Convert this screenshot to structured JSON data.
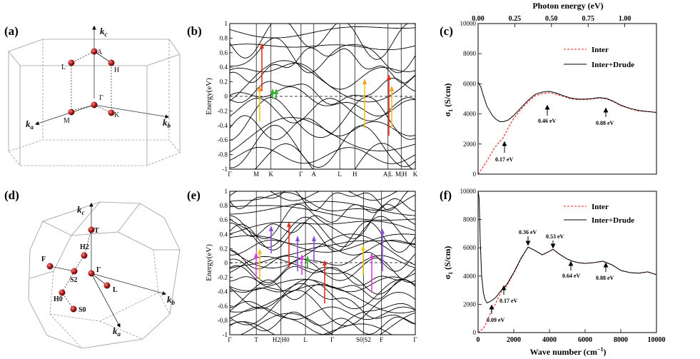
{
  "panels": {
    "a": {
      "label": "(a)",
      "points": [
        "A",
        "L",
        "H",
        "Γ",
        "M",
        "K"
      ],
      "axes": [
        "k",
        "c",
        "k",
        "a",
        "k",
        "b"
      ]
    },
    "b": {
      "label": "(b)",
      "ylabel": "Energy(eV)",
      "yticks": [
        "1",
        "0.8",
        "0.6",
        "0.4",
        "0.2",
        "0",
        "-0.2",
        "-0.4",
        "-0.6",
        "-0.8",
        "-1"
      ],
      "kpath": [
        "Γ",
        "M",
        "K",
        "Γ",
        "A",
        "L",
        "H",
        "A|L",
        "M|H",
        "K"
      ]
    },
    "c": {
      "label": "(c)",
      "top_axis_title": "Photon energy (eV)",
      "top_ticks": [
        "0.00",
        "0.25",
        "0.50",
        "0.75",
        "1.00"
      ],
      "yticks": [
        "10000",
        "8000",
        "6000",
        "4000",
        "2000",
        "0"
      ],
      "legend": [
        "Inter",
        "Inter+Drude"
      ],
      "annotations": [
        "0.17 eV",
        "0.46 eV",
        "0.88 eV"
      ]
    },
    "d": {
      "label": "(d)",
      "points": [
        "T",
        "H2",
        "F",
        "S2",
        "Γ",
        "L",
        "H0",
        "S0"
      ]
    },
    "e": {
      "label": "(e)",
      "ylabel": "Energy(eV)",
      "yticks": [
        "1",
        "0.8",
        "0.6",
        "0.4",
        "0.2",
        "0",
        "-0.2",
        "-0.4",
        "-0.6",
        "-0.8",
        "-1"
      ],
      "kpath": [
        "Γ",
        "T",
        "H2|H0",
        "L",
        "Γ",
        "S0|S2",
        "F",
        "Γ"
      ]
    },
    "f": {
      "label": "(f)",
      "xlabel": "Wave number (cm",
      "xticks": [
        "0",
        "2000",
        "4000",
        "6000",
        "8000",
        "10000"
      ],
      "yticks": [
        "10000",
        "8000",
        "6000",
        "4000",
        "2000",
        "0"
      ],
      "legend": [
        "Inter",
        "Inter+Drude"
      ],
      "annotations": [
        "0.09 eV",
        "0.17 eV",
        "0.36 eV",
        "0.53 eV",
        "0.64 eV",
        "0.88 eV"
      ]
    }
  },
  "sigma_label": {
    "main": "σ",
    "sub": "1",
    "unit": " (S/cm)"
  },
  "xunit_sup": "−1",
  "colors": {
    "inter": "#e8251f",
    "drude": "#000000",
    "orange": "#f4a21e",
    "red_arrow": "#e0301e",
    "green": "#32b12b",
    "magenta": "#e03ce8",
    "purple": "#8a4fd9",
    "yellow": "#f2c31f",
    "sphere": "#b41e1e"
  },
  "chart_data": [
    {
      "type": "line",
      "panel": "c",
      "title": "",
      "xlabel": "Wave number (cm−1)",
      "ylabel": "σ1 (S/cm)",
      "xlim": [
        0,
        10000
      ],
      "ylim": [
        0,
        10000
      ],
      "legend_position": "top-right",
      "series": [
        {
          "name": "Inter",
          "style": "dashed",
          "x": [
            0,
            300,
            600,
            900,
            1200,
            1400,
            1700,
            2000,
            2400,
            2800,
            3200,
            3600,
            4000,
            4400,
            4800,
            5200,
            5600,
            6000,
            6400,
            6800,
            7200,
            7600,
            8000,
            8500,
            9000,
            9500,
            10000
          ],
          "y": [
            0,
            500,
            1100,
            1700,
            2150,
            2400,
            3100,
            3700,
            4300,
            4800,
            5200,
            5350,
            5400,
            5300,
            5150,
            5000,
            4950,
            4950,
            5000,
            5050,
            5000,
            4800,
            4550,
            4350,
            4200,
            4150,
            4100
          ]
        },
        {
          "name": "Inter+Drude",
          "style": "solid",
          "x": [
            0,
            150,
            300,
            500,
            800,
            1000,
            1200,
            1400,
            1700,
            2000,
            2400,
            2800,
            3200,
            3600,
            4000,
            4400,
            4800,
            5200,
            5600,
            6000,
            6400,
            6800,
            7200,
            7600,
            8000,
            8500,
            9000,
            9500,
            10000
          ],
          "y": [
            6100,
            5800,
            5200,
            4500,
            3900,
            3650,
            3500,
            3480,
            3600,
            3900,
            4400,
            4900,
            5300,
            5450,
            5500,
            5380,
            5200,
            5050,
            4980,
            4980,
            5020,
            5080,
            5030,
            4830,
            4580,
            4370,
            4230,
            4160,
            4100
          ]
        }
      ]
    },
    {
      "type": "line",
      "panel": "f",
      "title": "",
      "xlabel": "Wave number (cm−1)",
      "ylabel": "σ1 (S/cm)",
      "xlim": [
        0,
        10000
      ],
      "ylim": [
        0,
        10000
      ],
      "legend_position": "top-right",
      "series": [
        {
          "name": "Inter",
          "style": "dashed",
          "x": [
            0,
            300,
            500,
            700,
            1000,
            1300,
            1600,
            2000,
            2400,
            2800,
            3200,
            3600,
            4000,
            4200,
            4500,
            5000,
            5300,
            5600,
            6000,
            6500,
            7000,
            7500,
            8000,
            8500,
            9000,
            9500,
            10000
          ],
          "y": [
            0,
            300,
            800,
            1400,
            2100,
            2900,
            3300,
            4200,
            5200,
            6050,
            5800,
            5500,
            5750,
            5900,
            5600,
            5200,
            5050,
            4950,
            4900,
            4950,
            5050,
            4800,
            4400,
            4250,
            4200,
            4300,
            4100
          ]
        },
        {
          "name": "Inter+Drude",
          "style": "solid",
          "x": [
            0,
            60,
            120,
            200,
            300,
            400,
            500,
            600,
            800,
            1000,
            1300,
            1600,
            2000,
            2400,
            2800,
            3200,
            3600,
            4000,
            4200,
            4500,
            5000,
            5300,
            5600,
            6000,
            6500,
            7000,
            7500,
            8000,
            8500,
            9000,
            9500,
            10000
          ],
          "y": [
            10000,
            9500,
            6500,
            4000,
            2800,
            2300,
            2100,
            2150,
            2300,
            2500,
            3000,
            3400,
            4250,
            5250,
            6050,
            5800,
            5500,
            5750,
            5900,
            5600,
            5200,
            5050,
            4950,
            4900,
            4950,
            5050,
            4800,
            4400,
            4250,
            4200,
            4300,
            4100
          ]
        }
      ]
    }
  ]
}
